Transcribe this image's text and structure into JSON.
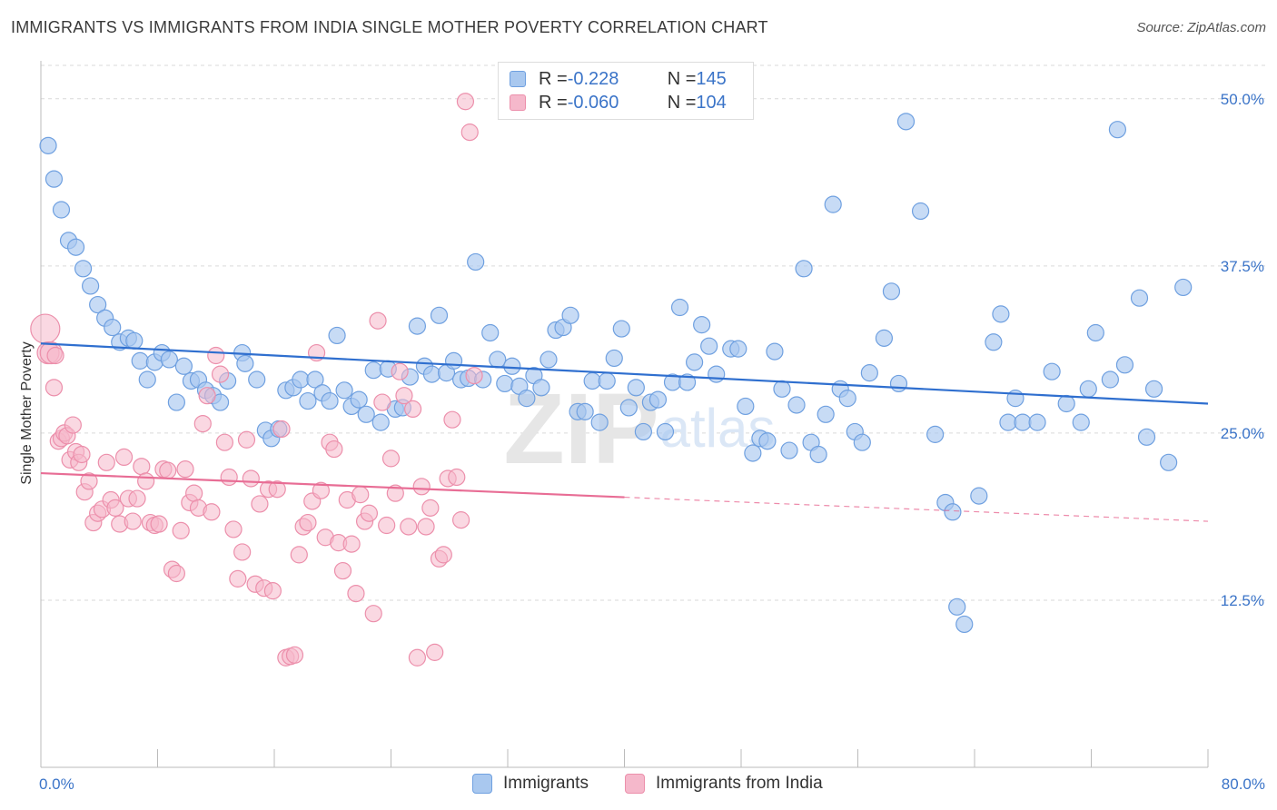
{
  "title": "IMMIGRANTS VS IMMIGRANTS FROM INDIA SINGLE MOTHER POVERTY CORRELATION CHART",
  "source": "Source: ZipAtlas.com",
  "legend_top": {
    "rows": [
      {
        "r_label": "R = ",
        "r_value": "-0.228",
        "n_label": "N = ",
        "n_value": "145"
      },
      {
        "r_label": "R = ",
        "r_value": "-0.060",
        "n_label": "N = ",
        "n_value": "104"
      }
    ]
  },
  "bottom_legend": [
    "Immigrants",
    "Immigrants from India"
  ],
  "colors": {
    "blue_fill": "#a9c8ef",
    "blue_stroke": "#6fa0e0",
    "blue_line": "#2f6fcf",
    "pink_fill": "#f5b8cb",
    "pink_stroke": "#ec8fab",
    "pink_line": "#e86d95",
    "axis_label": "#3b74c8"
  },
  "chart_data": {
    "type": "scatter",
    "title": "IMMIGRANTS VS IMMIGRANTS FROM INDIA SINGLE MOTHER POVERTY CORRELATION CHART",
    "xlabel": "",
    "ylabel": "Single Mother Poverty",
    "xlim": [
      0,
      80
    ],
    "ylim": [
      0,
      52.5
    ],
    "x_tick_labels": [
      "0.0%",
      "80.0%"
    ],
    "y_ticks": [
      12.5,
      25.0,
      37.5,
      50.0
    ],
    "y_tick_labels": [
      "12.5%",
      "25.0%",
      "37.5%",
      "50.0%"
    ],
    "grid": true,
    "watermark": "ZIPatlas",
    "series": [
      {
        "name": "Immigrants",
        "trend": {
          "x0": 0,
          "y0": 31.7,
          "x1": 80,
          "y1": 27.2
        },
        "points": [
          [
            0.5,
            46.5
          ],
          [
            0.9,
            44.0
          ],
          [
            1.4,
            41.7
          ],
          [
            1.9,
            39.4
          ],
          [
            2.4,
            38.9
          ],
          [
            2.9,
            37.3
          ],
          [
            3.4,
            36.0
          ],
          [
            3.9,
            34.6
          ],
          [
            4.4,
            33.6
          ],
          [
            4.9,
            32.9
          ],
          [
            5.4,
            31.8
          ],
          [
            6.0,
            32.1
          ],
          [
            6.4,
            31.9
          ],
          [
            6.8,
            30.4
          ],
          [
            7.3,
            29.0
          ],
          [
            7.8,
            30.3
          ],
          [
            8.3,
            31.0
          ],
          [
            8.8,
            30.5
          ],
          [
            9.3,
            27.3
          ],
          [
            9.8,
            30.0
          ],
          [
            10.3,
            28.9
          ],
          [
            10.8,
            29.0
          ],
          [
            11.3,
            28.2
          ],
          [
            11.8,
            27.8
          ],
          [
            12.3,
            27.3
          ],
          [
            12.8,
            28.9
          ],
          [
            13.8,
            31.0
          ],
          [
            14.0,
            30.2
          ],
          [
            14.8,
            29.0
          ],
          [
            15.4,
            25.2
          ],
          [
            15.8,
            24.6
          ],
          [
            16.3,
            25.3
          ],
          [
            16.8,
            28.2
          ],
          [
            17.3,
            28.4
          ],
          [
            17.8,
            29.0
          ],
          [
            18.3,
            27.4
          ],
          [
            18.8,
            29.0
          ],
          [
            19.3,
            28.0
          ],
          [
            19.8,
            27.4
          ],
          [
            20.3,
            32.3
          ],
          [
            20.8,
            28.2
          ],
          [
            21.3,
            27.0
          ],
          [
            21.8,
            27.5
          ],
          [
            22.3,
            26.4
          ],
          [
            22.8,
            29.7
          ],
          [
            23.3,
            25.8
          ],
          [
            23.8,
            29.8
          ],
          [
            24.3,
            26.8
          ],
          [
            24.8,
            26.9
          ],
          [
            25.3,
            29.2
          ],
          [
            25.8,
            33.0
          ],
          [
            26.3,
            30.0
          ],
          [
            26.8,
            29.4
          ],
          [
            27.3,
            33.8
          ],
          [
            27.8,
            29.5
          ],
          [
            28.3,
            30.4
          ],
          [
            28.8,
            29.0
          ],
          [
            29.3,
            29.1
          ],
          [
            29.8,
            37.8
          ],
          [
            30.3,
            29.0
          ],
          [
            30.8,
            32.5
          ],
          [
            31.3,
            30.5
          ],
          [
            31.8,
            28.7
          ],
          [
            32.3,
            30.0
          ],
          [
            32.8,
            28.5
          ],
          [
            33.3,
            27.6
          ],
          [
            33.8,
            29.3
          ],
          [
            34.3,
            28.4
          ],
          [
            34.8,
            30.5
          ],
          [
            35.3,
            32.7
          ],
          [
            35.8,
            32.9
          ],
          [
            36.3,
            33.8
          ],
          [
            36.8,
            26.6
          ],
          [
            37.3,
            26.6
          ],
          [
            37.8,
            28.9
          ],
          [
            38.3,
            25.8
          ],
          [
            38.8,
            28.9
          ],
          [
            39.3,
            30.6
          ],
          [
            39.8,
            32.8
          ],
          [
            40.3,
            26.9
          ],
          [
            40.8,
            28.4
          ],
          [
            41.3,
            25.1
          ],
          [
            41.8,
            27.3
          ],
          [
            42.3,
            27.5
          ],
          [
            42.8,
            25.1
          ],
          [
            43.3,
            28.8
          ],
          [
            43.8,
            34.4
          ],
          [
            44.3,
            28.8
          ],
          [
            44.8,
            30.3
          ],
          [
            45.3,
            33.1
          ],
          [
            45.8,
            31.5
          ],
          [
            46.3,
            29.4
          ],
          [
            47.3,
            31.3
          ],
          [
            47.8,
            31.3
          ],
          [
            48.3,
            27.0
          ],
          [
            48.8,
            23.5
          ],
          [
            49.3,
            24.6
          ],
          [
            49.8,
            24.4
          ],
          [
            50.3,
            31.1
          ],
          [
            50.8,
            28.3
          ],
          [
            51.3,
            23.7
          ],
          [
            51.8,
            27.1
          ],
          [
            52.3,
            37.3
          ],
          [
            52.8,
            24.3
          ],
          [
            53.3,
            23.4
          ],
          [
            53.8,
            26.4
          ],
          [
            54.3,
            42.1
          ],
          [
            54.8,
            28.3
          ],
          [
            55.3,
            27.6
          ],
          [
            55.8,
            25.1
          ],
          [
            56.3,
            24.3
          ],
          [
            56.8,
            29.5
          ],
          [
            57.8,
            32.1
          ],
          [
            58.3,
            35.6
          ],
          [
            58.8,
            28.7
          ],
          [
            59.3,
            48.3
          ],
          [
            60.3,
            41.6
          ],
          [
            61.3,
            24.9
          ],
          [
            62.0,
            19.8
          ],
          [
            62.5,
            19.1
          ],
          [
            62.8,
            12.0
          ],
          [
            63.3,
            10.7
          ],
          [
            64.3,
            20.3
          ],
          [
            65.3,
            31.8
          ],
          [
            65.8,
            33.9
          ],
          [
            66.3,
            25.8
          ],
          [
            66.8,
            27.6
          ],
          [
            67.3,
            25.8
          ],
          [
            68.3,
            25.8
          ],
          [
            69.3,
            29.6
          ],
          [
            70.3,
            27.2
          ],
          [
            71.3,
            25.8
          ],
          [
            71.8,
            28.3
          ],
          [
            72.3,
            32.5
          ],
          [
            73.3,
            29.0
          ],
          [
            73.8,
            47.7
          ],
          [
            74.3,
            30.1
          ],
          [
            75.3,
            35.1
          ],
          [
            75.8,
            24.7
          ],
          [
            76.3,
            28.3
          ],
          [
            77.3,
            22.8
          ],
          [
            78.3,
            35.9
          ]
        ]
      },
      {
        "name": "Immigrants from India",
        "trend": {
          "x0": 0,
          "y0": 22.0,
          "x1": 40,
          "y1": 20.2,
          "dash_x1": 80,
          "dash_y1": 18.4
        },
        "points": [
          [
            0.3,
            32.8
          ],
          [
            0.5,
            31.0
          ],
          [
            0.7,
            31.0
          ],
          [
            0.9,
            28.4
          ],
          [
            1.0,
            30.8
          ],
          [
            1.2,
            24.4
          ],
          [
            1.4,
            24.6
          ],
          [
            1.6,
            25.0
          ],
          [
            1.8,
            24.8
          ],
          [
            2.0,
            23.0
          ],
          [
            2.2,
            25.6
          ],
          [
            2.4,
            23.6
          ],
          [
            2.6,
            22.8
          ],
          [
            2.8,
            23.4
          ],
          [
            3.0,
            20.6
          ],
          [
            3.3,
            21.4
          ],
          [
            3.6,
            18.3
          ],
          [
            3.9,
            19.0
          ],
          [
            4.2,
            19.3
          ],
          [
            4.5,
            22.8
          ],
          [
            4.8,
            20.0
          ],
          [
            5.1,
            19.4
          ],
          [
            5.4,
            18.2
          ],
          [
            5.7,
            23.2
          ],
          [
            6.0,
            20.1
          ],
          [
            6.3,
            18.4
          ],
          [
            6.6,
            20.1
          ],
          [
            6.9,
            22.5
          ],
          [
            7.2,
            21.4
          ],
          [
            7.5,
            18.3
          ],
          [
            7.8,
            18.1
          ],
          [
            8.1,
            18.2
          ],
          [
            8.4,
            22.3
          ],
          [
            8.7,
            22.2
          ],
          [
            9.0,
            14.8
          ],
          [
            9.3,
            14.5
          ],
          [
            9.6,
            17.7
          ],
          [
            9.9,
            22.3
          ],
          [
            10.2,
            19.8
          ],
          [
            10.5,
            20.5
          ],
          [
            10.8,
            19.4
          ],
          [
            11.1,
            25.7
          ],
          [
            11.4,
            27.8
          ],
          [
            11.7,
            19.1
          ],
          [
            12.0,
            30.8
          ],
          [
            12.3,
            29.4
          ],
          [
            12.6,
            24.3
          ],
          [
            12.9,
            21.7
          ],
          [
            13.2,
            17.8
          ],
          [
            13.5,
            14.1
          ],
          [
            13.8,
            16.1
          ],
          [
            14.1,
            24.5
          ],
          [
            14.4,
            21.6
          ],
          [
            14.7,
            13.7
          ],
          [
            15.0,
            19.7
          ],
          [
            15.3,
            13.4
          ],
          [
            15.6,
            20.8
          ],
          [
            15.9,
            13.2
          ],
          [
            16.2,
            20.8
          ],
          [
            16.5,
            25.3
          ],
          [
            16.8,
            8.2
          ],
          [
            17.1,
            8.3
          ],
          [
            17.4,
            8.4
          ],
          [
            17.7,
            15.9
          ],
          [
            18.0,
            18.0
          ],
          [
            18.3,
            18.3
          ],
          [
            18.6,
            19.9
          ],
          [
            18.9,
            31.0
          ],
          [
            19.2,
            20.7
          ],
          [
            19.5,
            17.2
          ],
          [
            19.8,
            24.3
          ],
          [
            20.1,
            23.8
          ],
          [
            20.4,
            16.8
          ],
          [
            20.7,
            14.7
          ],
          [
            21.0,
            20.0
          ],
          [
            21.3,
            16.7
          ],
          [
            21.6,
            13.0
          ],
          [
            21.9,
            20.4
          ],
          [
            22.2,
            18.4
          ],
          [
            22.5,
            19.0
          ],
          [
            22.8,
            11.5
          ],
          [
            23.1,
            33.4
          ],
          [
            23.4,
            27.3
          ],
          [
            23.7,
            18.1
          ],
          [
            24.0,
            23.1
          ],
          [
            24.3,
            20.5
          ],
          [
            24.6,
            29.6
          ],
          [
            24.9,
            27.8
          ],
          [
            25.2,
            18.0
          ],
          [
            25.5,
            26.8
          ],
          [
            25.8,
            8.2
          ],
          [
            26.1,
            21.0
          ],
          [
            26.4,
            18.0
          ],
          [
            26.7,
            19.4
          ],
          [
            27.0,
            8.6
          ],
          [
            27.3,
            15.6
          ],
          [
            27.6,
            15.9
          ],
          [
            27.9,
            21.6
          ],
          [
            28.2,
            26.0
          ],
          [
            28.5,
            21.7
          ],
          [
            28.8,
            18.5
          ],
          [
            29.1,
            49.8
          ],
          [
            29.4,
            47.5
          ],
          [
            29.7,
            29.3
          ]
        ]
      }
    ]
  }
}
